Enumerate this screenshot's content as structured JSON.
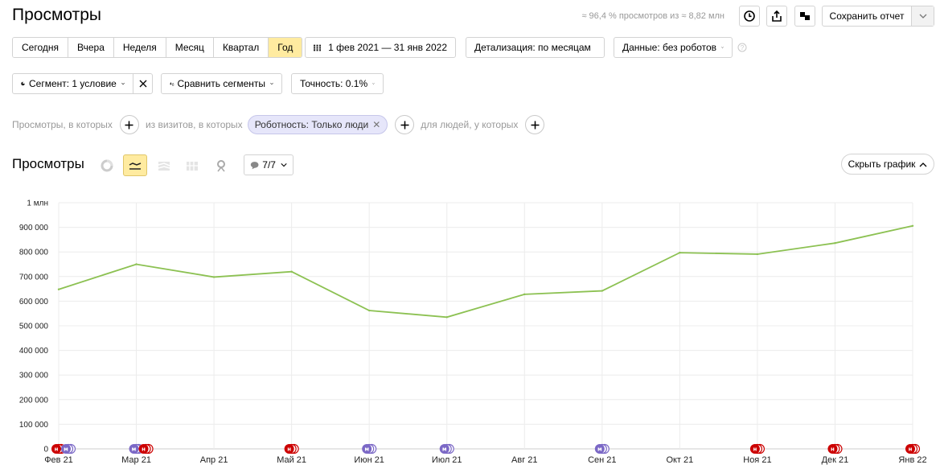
{
  "header": {
    "title": "Просмотры",
    "summary": "≈ 96,4 % просмотров из ≈ 8,82 млн",
    "save_report": "Сохранить отчет"
  },
  "period_buttons": [
    "Сегодня",
    "Вчера",
    "Неделя",
    "Месяц",
    "Квартал",
    "Год"
  ],
  "active_period": "Год",
  "date_range": "1 фев 2021 — 31 янв 2022",
  "detalization": "Детализация: по месяцам",
  "data_filter": "Данные: без роботов",
  "segment": "Сегмент: 1 условие",
  "compare_segments": "Сравнить сегменты",
  "accuracy": "Точность: 0.1%",
  "filters": {
    "views_label": "Просмотры, в которых",
    "visits_label": "из визитов, в которых",
    "chip": "Роботность: Только люди",
    "people_label": "для людей, у которых"
  },
  "chart_section": {
    "title": "Просмотры",
    "annotations": "7/7",
    "hide_chart": "Скрыть график"
  },
  "colors": {
    "line": "#8cc152",
    "active": "#ffeba0",
    "marker_red": "#cc0000",
    "marker_purple": "#7b68c6"
  },
  "chart_data": {
    "type": "line",
    "categories": [
      "Фев 21",
      "Мар 21",
      "Апр 21",
      "Май 21",
      "Июн 21",
      "Июл 21",
      "Авг 21",
      "Сен 21",
      "Окт 21",
      "Ноя 21",
      "Дек 21",
      "Янв 22"
    ],
    "series": [
      {
        "values": [
          648000,
          750000,
          698000,
          720000,
          562000,
          535000,
          628000,
          642000,
          797000,
          791000,
          836000,
          906000
        ]
      }
    ],
    "yticks": [
      "0",
      "100 000",
      "200 000",
      "300 000",
      "400 000",
      "500 000",
      "600 000",
      "700 000",
      "800 000",
      "900 000",
      "1 млн"
    ],
    "ylim": [
      0,
      1000000
    ],
    "grid": true,
    "markers": [
      {
        "x": 0,
        "items": [
          [
            "н",
            "red"
          ],
          [
            "м",
            "purple"
          ]
        ]
      },
      {
        "x": 1,
        "items": [
          [
            "м",
            "purple"
          ],
          [
            "н",
            "red"
          ]
        ]
      },
      {
        "x": 3,
        "items": [
          [
            "н",
            "red"
          ]
        ]
      },
      {
        "x": 4,
        "items": [
          [
            "м",
            "purple"
          ]
        ]
      },
      {
        "x": 5,
        "items": [
          [
            "м",
            "purple"
          ]
        ]
      },
      {
        "x": 7,
        "items": [
          [
            "м",
            "purple"
          ]
        ]
      },
      {
        "x": 9,
        "items": [
          [
            "н",
            "red"
          ]
        ]
      },
      {
        "x": 10,
        "items": [
          [
            "н",
            "red"
          ]
        ]
      },
      {
        "x": 11,
        "items": [
          [
            "н",
            "red"
          ]
        ]
      }
    ]
  }
}
